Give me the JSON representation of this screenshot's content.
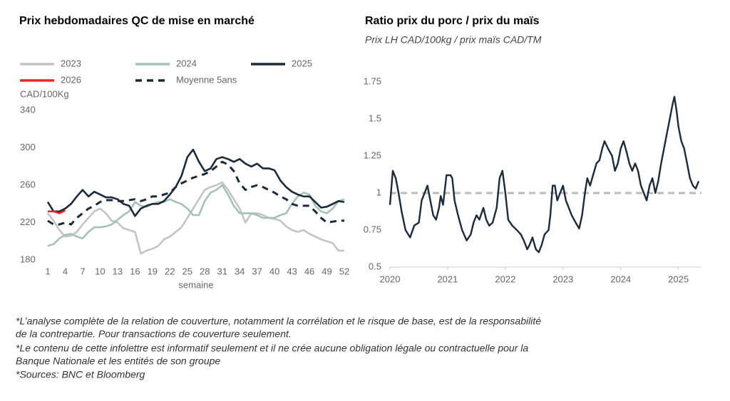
{
  "chart_data": [
    {
      "type": "line",
      "title": "Prix hebdomadaires QC de mise en marché",
      "y_label": "CAD/100Kg",
      "x_label": "semaine",
      "legend": "top-left",
      "x": [
        1,
        2,
        3,
        4,
        5,
        6,
        7,
        8,
        9,
        10,
        11,
        12,
        13,
        14,
        15,
        16,
        17,
        18,
        19,
        20,
        21,
        22,
        23,
        24,
        25,
        26,
        27,
        28,
        29,
        30,
        31,
        32,
        33,
        34,
        35,
        36,
        37,
        38,
        39,
        40,
        41,
        42,
        43,
        44,
        45,
        46,
        47,
        48,
        49,
        50,
        51,
        52
      ],
      "xlim": [
        1,
        52
      ],
      "xticks": [
        1,
        4,
        7,
        10,
        13,
        16,
        19,
        22,
        25,
        28,
        31,
        34,
        37,
        40,
        43,
        46,
        49,
        52
      ],
      "ylim": [
        180,
        340
      ],
      "yticks": [
        180,
        220,
        260,
        300,
        340
      ],
      "series": [
        {
          "name": "2023",
          "color": "#c4c4c4",
          "dash": false,
          "values": [
            230,
            222,
            212,
            205,
            206,
            210,
            218,
            225,
            232,
            235,
            230,
            222,
            220,
            214,
            212,
            210,
            187,
            190,
            192,
            195,
            202,
            205,
            210,
            215,
            225,
            235,
            245,
            255,
            258,
            260,
            263,
            255,
            245,
            235,
            220,
            230,
            230,
            228,
            225,
            224,
            222,
            216,
            212,
            210,
            212,
            208,
            205,
            202,
            200,
            198,
            190,
            190
          ]
        },
        {
          "name": "2024",
          "color": "#a5c2b6",
          "dash": false,
          "values": [
            195,
            197,
            203,
            207,
            208,
            205,
            203,
            210,
            215,
            215,
            216,
            218,
            223,
            228,
            232,
            242,
            238,
            237,
            240,
            242,
            242,
            245,
            242,
            240,
            235,
            228,
            228,
            243,
            252,
            255,
            260,
            250,
            238,
            230,
            230,
            230,
            228,
            225,
            225,
            225,
            228,
            230,
            240,
            248,
            252,
            250,
            238,
            232,
            230,
            235,
            243,
            245
          ]
        },
        {
          "name": "2025",
          "color": "#1c2a3a",
          "dash": false,
          "values": [
            242,
            232,
            232,
            235,
            240,
            248,
            255,
            248,
            253,
            250,
            247,
            247,
            245,
            240,
            238,
            227,
            235,
            238,
            240,
            240,
            243,
            250,
            258,
            270,
            290,
            298,
            285,
            275,
            278,
            288,
            290,
            288,
            285,
            288,
            283,
            280,
            283,
            278,
            278,
            276,
            265,
            258,
            253,
            250,
            248,
            248,
            242,
            236,
            237,
            240,
            243,
            242
          ]
        },
        {
          "name": "2026",
          "color": "#e8262c",
          "dash": false,
          "values": [
            232,
            232,
            230,
            233,
            null,
            null,
            null,
            null,
            null,
            null,
            null,
            null,
            null,
            null,
            null,
            null,
            null,
            null,
            null,
            null,
            null,
            null,
            null,
            null,
            null,
            null,
            null,
            null,
            null,
            null,
            null,
            null,
            null,
            null,
            null,
            null,
            null,
            null,
            null,
            null,
            null,
            null,
            null,
            null,
            null,
            null,
            null,
            null,
            null,
            null,
            null,
            null
          ]
        },
        {
          "name": "Moyenne 5ans",
          "color": "#1c2a3a",
          "dash": true,
          "values": [
            222,
            218,
            218,
            220,
            218,
            225,
            230,
            235,
            238,
            242,
            244,
            244,
            243,
            243,
            244,
            245,
            243,
            245,
            248,
            248,
            250,
            252,
            258,
            262,
            265,
            268,
            270,
            272,
            275,
            280,
            285,
            282,
            275,
            262,
            255,
            258,
            260,
            258,
            255,
            252,
            248,
            245,
            240,
            238,
            238,
            238,
            232,
            225,
            220,
            221,
            222,
            222
          ]
        }
      ]
    },
    {
      "type": "line",
      "title": "Ratio prix du porc / prix du maïs",
      "subtitle": "Prix LH CAD/100kg / prix maïs CAD/TM",
      "xlim": [
        2020,
        2025.4
      ],
      "xticks": [
        2020,
        2021,
        2022,
        2023,
        2024,
        2025
      ],
      "ylim": [
        0.5,
        1.75
      ],
      "yticks": [
        0.5,
        0.75,
        1,
        1.25,
        1.5,
        1.75
      ],
      "reference_line": 1,
      "reference_color": "#bbbbbb",
      "color": "#1c2a3a",
      "x": [
        2020.0,
        2020.05,
        2020.1,
        2020.15,
        2020.2,
        2020.27,
        2020.35,
        2020.42,
        2020.5,
        2020.55,
        2020.6,
        2020.65,
        2020.7,
        2020.75,
        2020.8,
        2020.85,
        2020.88,
        2020.92,
        2020.98,
        2021.05,
        2021.08,
        2021.12,
        2021.18,
        2021.25,
        2021.33,
        2021.4,
        2021.45,
        2021.5,
        2021.55,
        2021.62,
        2021.67,
        2021.72,
        2021.78,
        2021.85,
        2021.9,
        2021.95,
        2022.0,
        2022.05,
        2022.12,
        2022.2,
        2022.27,
        2022.32,
        2022.38,
        2022.42,
        2022.47,
        2022.53,
        2022.58,
        2022.63,
        2022.68,
        2022.75,
        2022.78,
        2022.82,
        2022.86,
        2022.9,
        2022.95,
        2023.0,
        2023.05,
        2023.1,
        2023.15,
        2023.22,
        2023.28,
        2023.33,
        2023.38,
        2023.42,
        2023.47,
        2023.52,
        2023.58,
        2023.63,
        2023.68,
        2023.72,
        2023.78,
        2023.85,
        2023.9,
        2023.95,
        2024.0,
        2024.05,
        2024.1,
        2024.15,
        2024.2,
        2024.25,
        2024.3,
        2024.35,
        2024.4,
        2024.45,
        2024.5,
        2024.55,
        2024.6,
        2024.65,
        2024.7,
        2024.75,
        2024.8,
        2024.85,
        2024.9,
        2024.93,
        2024.97,
        2025.0,
        2025.05,
        2025.1,
        2025.15,
        2025.2,
        2025.25,
        2025.3,
        2025.35
      ],
      "values": [
        0.92,
        1.15,
        1.1,
        1.0,
        0.88,
        0.75,
        0.7,
        0.78,
        0.8,
        0.95,
        1.0,
        1.05,
        0.95,
        0.85,
        0.82,
        0.9,
        0.98,
        0.92,
        1.12,
        1.12,
        1.1,
        0.95,
        0.85,
        0.75,
        0.68,
        0.72,
        0.8,
        0.85,
        0.82,
        0.9,
        0.82,
        0.78,
        0.8,
        0.9,
        1.1,
        1.15,
        1.0,
        0.82,
        0.78,
        0.75,
        0.72,
        0.68,
        0.62,
        0.65,
        0.7,
        0.62,
        0.6,
        0.65,
        0.72,
        0.75,
        0.85,
        1.05,
        1.05,
        0.95,
        1.0,
        1.05,
        0.95,
        0.9,
        0.85,
        0.8,
        0.76,
        0.85,
        1.0,
        1.1,
        1.05,
        1.12,
        1.2,
        1.22,
        1.3,
        1.35,
        1.3,
        1.25,
        1.15,
        1.2,
        1.3,
        1.35,
        1.28,
        1.2,
        1.15,
        1.2,
        1.15,
        1.05,
        1.0,
        0.95,
        1.05,
        1.1,
        1.0,
        1.08,
        1.2,
        1.3,
        1.4,
        1.5,
        1.6,
        1.65,
        1.55,
        1.45,
        1.35,
        1.3,
        1.2,
        1.1,
        1.05,
        1.03,
        1.08
      ]
    }
  ],
  "footnotes": [
    "*L’analyse complète de la relation de couverture, notamment la corrélation et le risque de base, est de la responsabilité",
    "de la contrepartie. Pour transactions de couverture seulement.",
    "*Le contenu de cette infolettre est informatif seulement et il ne crée aucune obligation légale ou contractuelle pour la",
    "Banque Nationale et les entités de son groupe",
    "*Sources: BNC et Bloomberg"
  ]
}
